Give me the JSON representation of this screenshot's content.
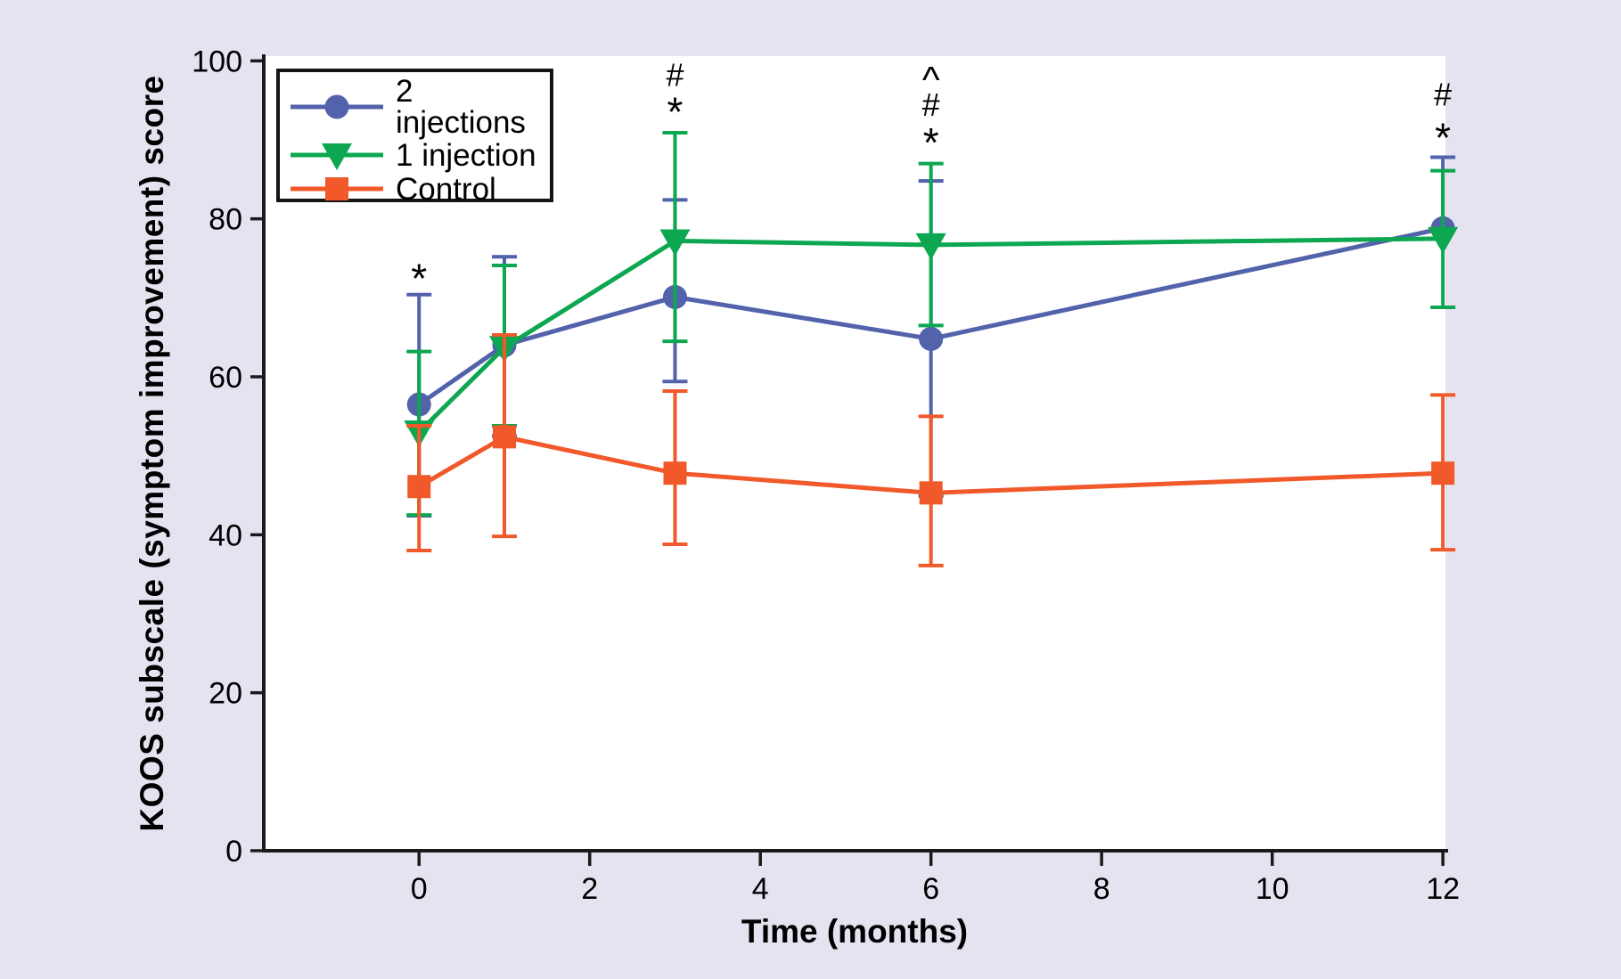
{
  "chart_data": {
    "type": "line",
    "title": "",
    "xlabel": "Time (months)",
    "ylabel": "KOOS subscale (symptom improvement) score",
    "x_ticks": [
      0,
      2,
      4,
      6,
      8,
      10,
      12
    ],
    "y_ticks": [
      0,
      20,
      40,
      60,
      80,
      100
    ],
    "xlim": [
      -1.82,
      12.03
    ],
    "ylim": [
      0,
      100.6
    ],
    "x": [
      0,
      1,
      3,
      6,
      12
    ],
    "series": [
      {
        "name": "2 injections",
        "color": "#5262ab",
        "marker": "circle",
        "values": [
          56.5,
          64.0,
          70.1,
          64.8,
          78.8
        ],
        "err_up": [
          70.4,
          75.2,
          82.4,
          84.8,
          87.8
        ],
        "err_down": [
          42.4,
          52.5,
          59.4,
          44.9,
          null
        ]
      },
      {
        "name": "1 injection",
        "color": "#0ca750",
        "marker": "triangle-down",
        "values": [
          53.0,
          63.7,
          77.2,
          76.7,
          77.5
        ],
        "err_up": [
          63.2,
          74.1,
          90.9,
          87.0,
          86.1
        ],
        "err_down": [
          42.5,
          53.8,
          64.5,
          66.5,
          68.8
        ]
      },
      {
        "name": "Control",
        "color": "#f1592a",
        "marker": "square",
        "values": [
          46.1,
          52.4,
          47.8,
          45.3,
          47.8
        ],
        "err_up": [
          53.8,
          65.3,
          58.2,
          55.0,
          57.7
        ],
        "err_down": [
          38.0,
          39.8,
          38.8,
          36.1,
          38.1
        ]
      }
    ],
    "annotations": [
      {
        "month": 0,
        "symbols": [
          {
            "glyph": "*",
            "y": 72.7
          }
        ]
      },
      {
        "month": 3,
        "symbols": [
          {
            "glyph": "#",
            "y": 98.3
          },
          {
            "glyph": "*",
            "y": 93.8
          }
        ]
      },
      {
        "month": 6,
        "symbols": [
          {
            "glyph": "^",
            "y": 98.4
          },
          {
            "glyph": "#",
            "y": 94.5
          },
          {
            "glyph": "*",
            "y": 89.9
          }
        ]
      },
      {
        "month": 12,
        "symbols": [
          {
            "glyph": "#",
            "y": 95.8
          },
          {
            "glyph": "*",
            "y": 90.5
          }
        ]
      }
    ],
    "legend": {
      "position": "top-left",
      "labels": [
        "2 injections",
        "1 injection",
        "Control"
      ]
    },
    "colors": {
      "background": "#e6e3f1",
      "plot_background": "#ffffff",
      "axis": "#1a1a1a",
      "text": "#000000"
    }
  }
}
